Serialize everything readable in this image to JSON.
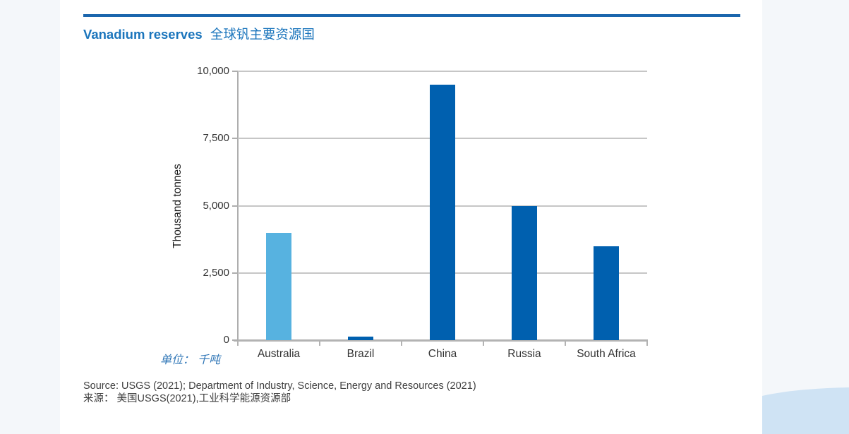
{
  "page": {
    "title_en": "Vanadium reserves",
    "title_zh": "全球钒主要资源国",
    "unit_label": "单位： 千吨",
    "source_line1": "Source: USGS (2021); Department of Industry, Science, Energy and Resources (2021)",
    "source_line2": "来源： 美国USGS(2021),工业科学能源资源部"
  },
  "colors": {
    "title_text": "#1b75bc",
    "title_rule": "#1b66ad",
    "bar_default": "#0060af",
    "bar_highlight": "#57b2e0",
    "gridline": "#c6c6c6",
    "axis": "#aeaeae",
    "tick_text": "#333333",
    "unit_text": "#2e75b6",
    "source_text": "#3f3f3f",
    "side_strip": "#f4f7fa",
    "wave": "#cfe3f4"
  },
  "chart_data": {
    "type": "bar",
    "title": "Vanadium reserves 全球钒主要资源国",
    "categories": [
      "Australia",
      "Brazil",
      "China",
      "Russia",
      "South Africa"
    ],
    "values": [
      4000,
      120,
      9500,
      5000,
      3500
    ],
    "bar_colors": [
      "#57b2e0",
      "#0060af",
      "#0060af",
      "#0060af",
      "#0060af"
    ],
    "xlabel": "",
    "ylabel": "Thousand tonnes",
    "ylim": [
      0,
      10000
    ],
    "yticks": [
      0,
      2500,
      5000,
      7500,
      10000
    ],
    "ytick_labels": [
      "0",
      "2,500",
      "5,000",
      "7,500",
      "10,000"
    ],
    "grid": "horizontal gridlines at each y tick",
    "legend": "none",
    "unit_note": "单位： 千吨 (thousand tonnes)"
  }
}
